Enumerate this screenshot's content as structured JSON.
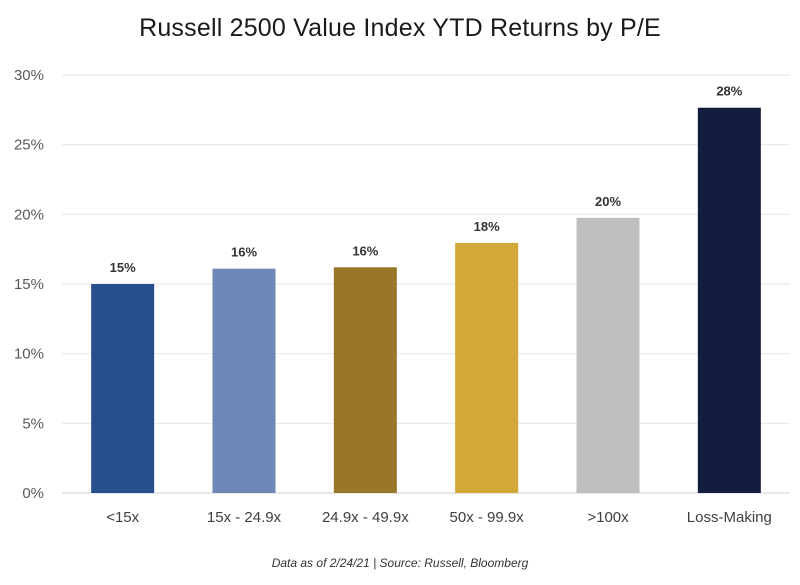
{
  "chart_data": {
    "type": "bar",
    "title": "Russell 2500 Value Index YTD Returns by P/E",
    "categories": [
      "<15x",
      "15x - 24.9x",
      "24.9x - 49.9x",
      "50x - 99.9x",
      ">100x",
      "Loss-Making"
    ],
    "values": [
      15,
      16.1,
      16.2,
      17.95,
      19.75,
      27.65
    ],
    "data_labels": [
      "15%",
      "16%",
      "16%",
      "18%",
      "20%",
      "28%"
    ],
    "colors": [
      "#264d8c",
      "#6d87b6",
      "#98762a",
      "#d4a838",
      "#bfbfbd",
      "#121d40"
    ],
    "ylim": [
      0,
      30
    ],
    "yticks": [
      0,
      5,
      10,
      15,
      20,
      25,
      30
    ],
    "ytick_labels": [
      "0%",
      "5%",
      "10%",
      "15%",
      "20%",
      "25%",
      "30%"
    ],
    "xlabel": "",
    "ylabel": "",
    "grid": true,
    "legend": "none"
  },
  "footnote": "Data as of 2/24/21  |  Source: Russell, Bloomberg"
}
